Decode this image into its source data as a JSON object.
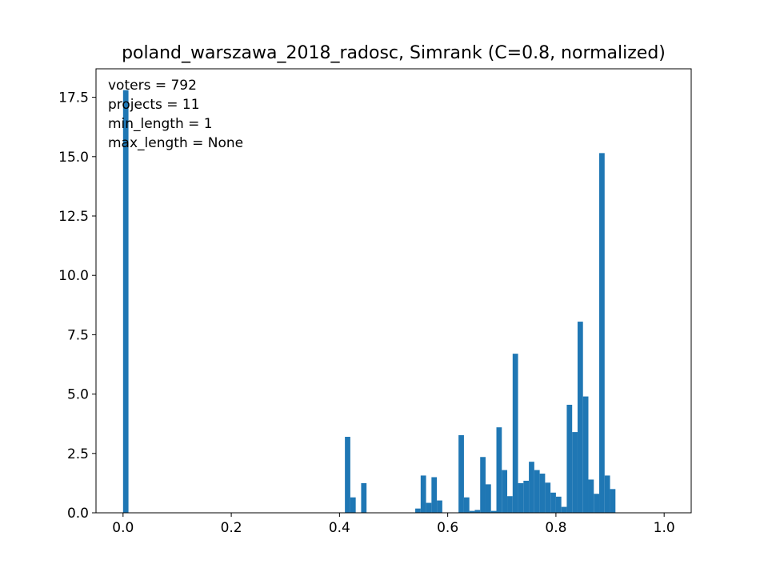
{
  "chart_data": {
    "type": "bar",
    "title": "poland_warszawa_2018_radosc, Simrank (C=0.8, normalized)",
    "xlabel": "",
    "ylabel": "",
    "xlim": [
      -0.05,
      1.05
    ],
    "ylim": [
      0,
      18.7
    ],
    "bin_width": 0.01,
    "x_ticks": [
      0.0,
      0.2,
      0.4,
      0.6,
      0.8,
      1.0
    ],
    "x_tick_labels": [
      "0.0",
      "0.2",
      "0.4",
      "0.6",
      "0.8",
      "1.0"
    ],
    "y_ticks": [
      0.0,
      2.5,
      5.0,
      7.5,
      10.0,
      12.5,
      15.0,
      17.5
    ],
    "y_tick_labels": [
      "0.0",
      "2.5",
      "5.0",
      "7.5",
      "10.0",
      "12.5",
      "15.0",
      "17.5"
    ],
    "annotations": [
      "voters = 792",
      "projects = 11",
      "min_length = 1",
      "max_length = None"
    ],
    "color": "#1f77b4",
    "grid": false,
    "bins": [
      {
        "x": 0.0,
        "value": 17.8
      },
      {
        "x": 0.41,
        "value": 3.2
      },
      {
        "x": 0.42,
        "value": 0.65
      },
      {
        "x": 0.44,
        "value": 1.25
      },
      {
        "x": 0.54,
        "value": 0.18
      },
      {
        "x": 0.55,
        "value": 1.57
      },
      {
        "x": 0.56,
        "value": 0.42
      },
      {
        "x": 0.57,
        "value": 1.5
      },
      {
        "x": 0.58,
        "value": 0.52
      },
      {
        "x": 0.62,
        "value": 3.27
      },
      {
        "x": 0.63,
        "value": 0.65
      },
      {
        "x": 0.64,
        "value": 0.08
      },
      {
        "x": 0.65,
        "value": 0.12
      },
      {
        "x": 0.66,
        "value": 2.35
      },
      {
        "x": 0.67,
        "value": 1.2
      },
      {
        "x": 0.68,
        "value": 0.08
      },
      {
        "x": 0.69,
        "value": 3.6
      },
      {
        "x": 0.7,
        "value": 1.8
      },
      {
        "x": 0.71,
        "value": 0.7
      },
      {
        "x": 0.72,
        "value": 6.7
      },
      {
        "x": 0.73,
        "value": 1.25
      },
      {
        "x": 0.74,
        "value": 1.35
      },
      {
        "x": 0.75,
        "value": 2.15
      },
      {
        "x": 0.76,
        "value": 1.8
      },
      {
        "x": 0.77,
        "value": 1.65
      },
      {
        "x": 0.78,
        "value": 1.27
      },
      {
        "x": 0.79,
        "value": 0.85
      },
      {
        "x": 0.8,
        "value": 0.68
      },
      {
        "x": 0.81,
        "value": 0.25
      },
      {
        "x": 0.82,
        "value": 4.55
      },
      {
        "x": 0.83,
        "value": 3.4
      },
      {
        "x": 0.84,
        "value": 8.05
      },
      {
        "x": 0.85,
        "value": 4.9
      },
      {
        "x": 0.86,
        "value": 1.4
      },
      {
        "x": 0.87,
        "value": 0.8
      },
      {
        "x": 0.88,
        "value": 15.15
      },
      {
        "x": 0.89,
        "value": 1.57
      },
      {
        "x": 0.9,
        "value": 1.0
      }
    ]
  }
}
